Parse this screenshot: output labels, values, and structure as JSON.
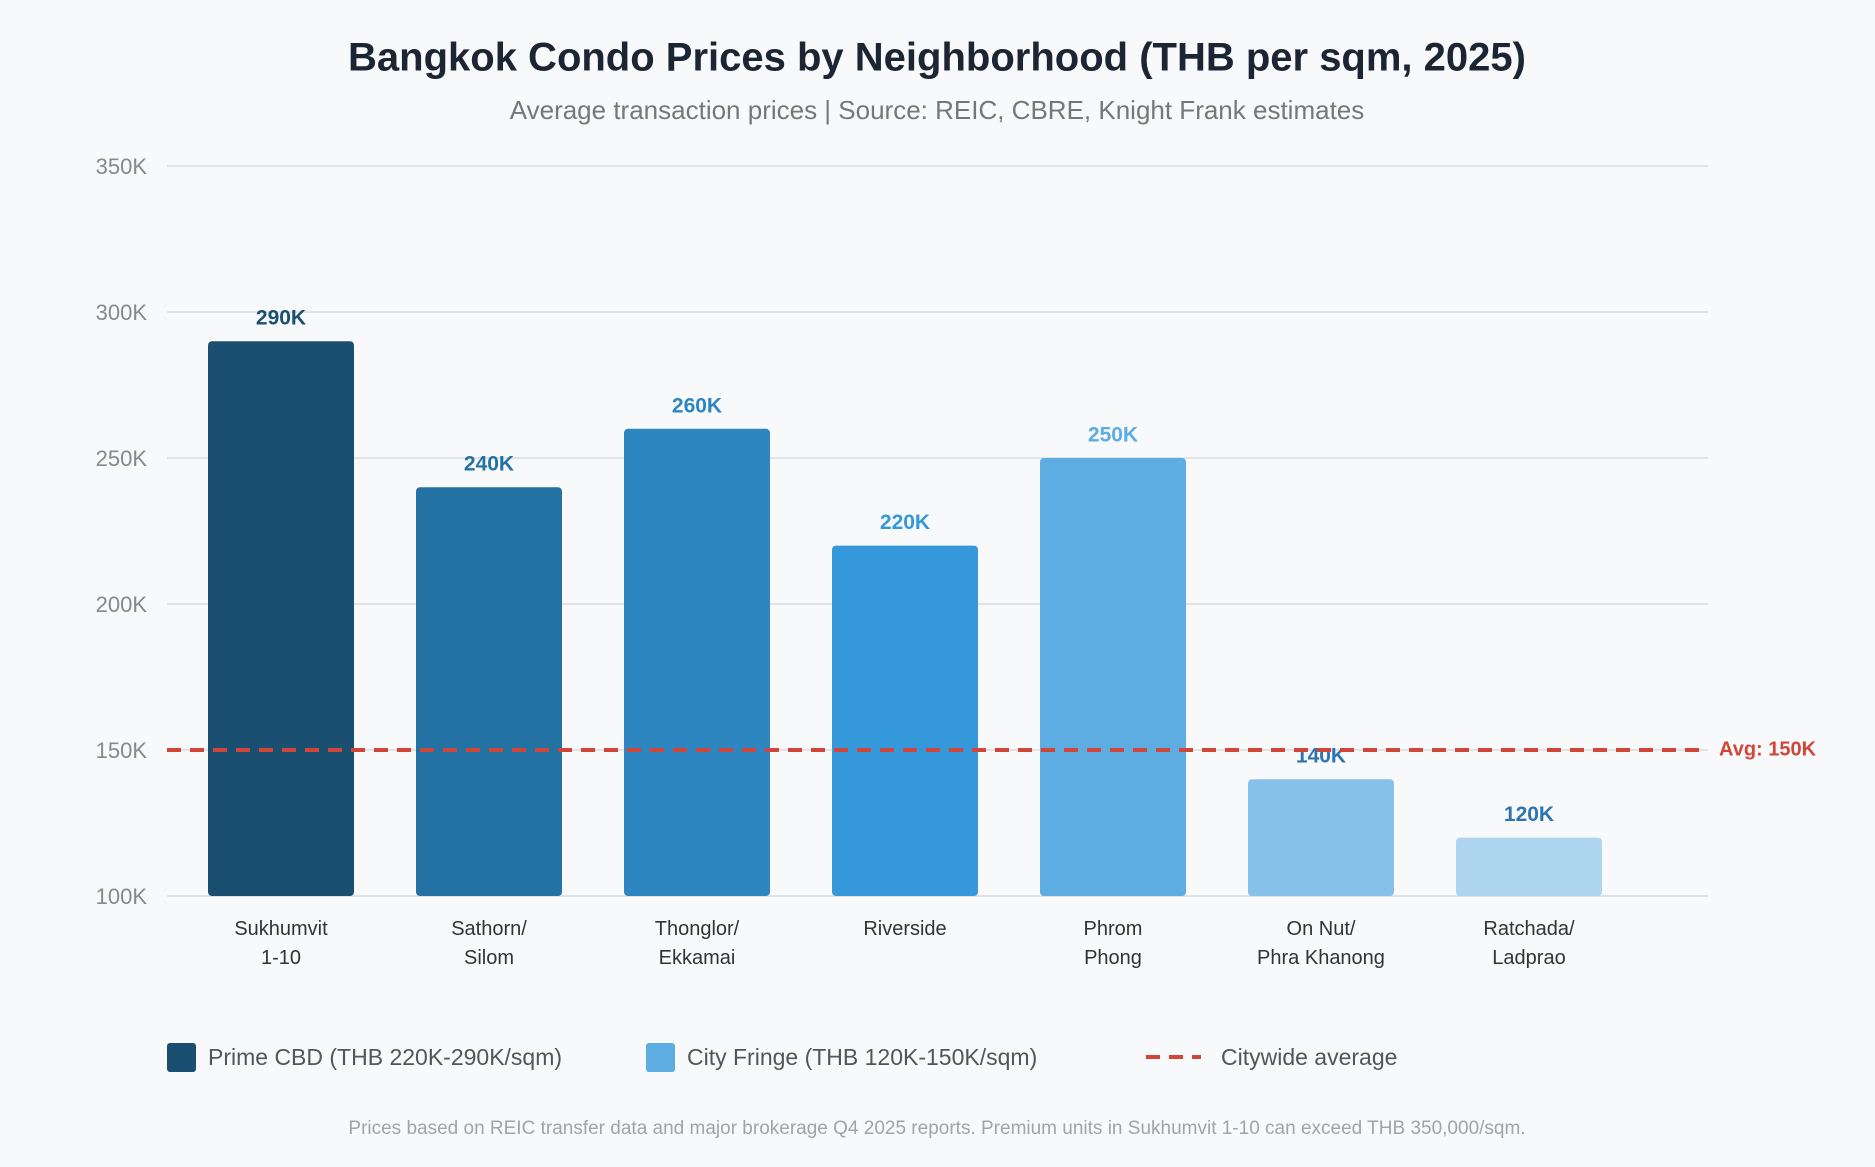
{
  "chart_data": {
    "type": "bar",
    "title": "Bangkok Condo Prices by Neighborhood (THB per sqm, 2025)",
    "subtitle": "Average transaction prices | Source: REIC, CBRE, Knight Frank estimates",
    "categories": [
      "Sukhumvit\n1-10",
      "Sathorn/\nSilom",
      "Thonglor/\nEkkamai",
      "Riverside",
      "Phrom\nPhong",
      "On Nut/\nPhra Khanong",
      "Ratchada/\nLadprao"
    ],
    "values": [
      290000,
      240000,
      260000,
      220000,
      250000,
      140000,
      120000
    ],
    "value_labels": [
      "290K",
      "240K",
      "260K",
      "220K",
      "250K",
      "140K",
      "120K"
    ],
    "colors": [
      "#1b4f72",
      "#2471a3",
      "#2e86c1",
      "#3498db",
      "#5dade2",
      "#85c1e9",
      "#aed6f1"
    ],
    "ylim": [
      100000,
      350000
    ],
    "yticks": [
      {
        "value": 100000,
        "label": "100K"
      },
      {
        "value": 150000,
        "label": "150K"
      },
      {
        "value": 200000,
        "label": "200K"
      },
      {
        "value": 250000,
        "label": "250K"
      },
      {
        "value": 300000,
        "label": "300K"
      },
      {
        "value": 350000,
        "label": "350K"
      }
    ],
    "grid": true,
    "reference_line": {
      "value": 150000,
      "label": "Avg: 150K",
      "legend": "Citywide average",
      "color": "#d0473a"
    },
    "legend": [
      {
        "label": "Prime CBD (THB 220K-290K/sqm)",
        "color": "#1b4f72"
      },
      {
        "label": "City Fringe (THB 120K-150K/sqm)",
        "color": "#5dade2"
      }
    ],
    "footnote": "Prices based on REIC transfer data and major brokerage Q4 2025 reports. Premium units in Sukhumvit 1-10 can exceed THB 350,000/sqm."
  }
}
